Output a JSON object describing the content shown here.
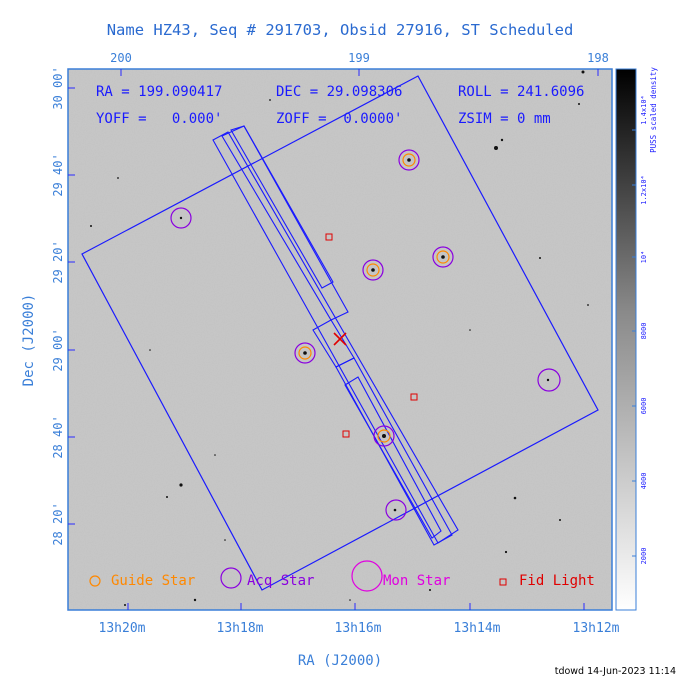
{
  "header": {
    "title": "Name HZ43, Seq # 291703, Obsid 27916, ST Scheduled"
  },
  "top_axis": {
    "ticks": [
      "200",
      "199",
      "198"
    ]
  },
  "info": {
    "ra": "RA = 199.090417",
    "dec": "DEC = 29.098306",
    "roll": "ROLL = 241.6096",
    "yoff": "YOFF =   0.000'",
    "zoff": "ZOFF =  0.0000'",
    "zsim": "ZSIM = 0 mm"
  },
  "left_axis": {
    "label": "Dec (J2000)",
    "ticks": [
      "30 00'",
      "29 40'",
      "29 20'",
      "29 00'",
      "28 40'",
      "28 20'"
    ]
  },
  "bottom_axis": {
    "label": "RA (J2000)",
    "ticks": [
      "13h20m",
      "13h18m",
      "13h16m",
      "13h14m",
      "13h12m"
    ]
  },
  "colorbar": {
    "label": "PUSS scaled density",
    "ticks": [
      "1.4x10⁴",
      "1.2x10⁴",
      "10⁴",
      "8000",
      "6000",
      "4000",
      "2000"
    ]
  },
  "legend": {
    "guide_star": "Guide Star",
    "acq_star": "Acq Star",
    "mon_star": "Mon Star",
    "fid_light": "Fid Light"
  },
  "footer": {
    "stamp": "tdowd 14-Jun-2023 11:14"
  },
  "colors": {
    "axis_blue": "#3a7fd8",
    "frame_blue": "#1a1aff",
    "title_blue": "#2a6ad0",
    "guide_orange": "#ff8800",
    "acq_purple": "#8a00e0",
    "mon_magenta": "#e000e0",
    "fid_red": "#e00000",
    "background_gray": "#c8c8c8"
  }
}
